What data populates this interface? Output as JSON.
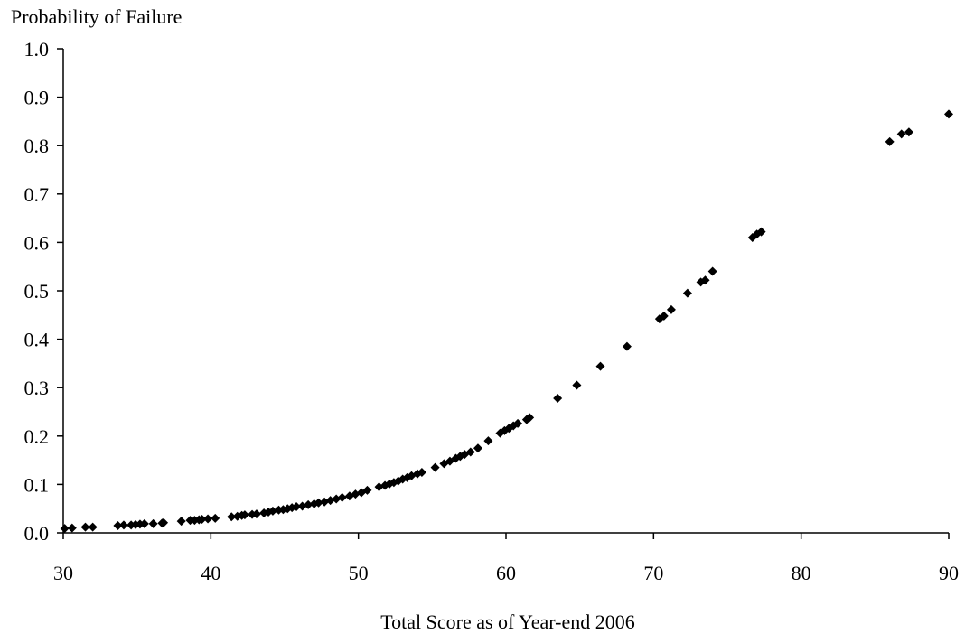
{
  "chart_data": {
    "type": "scatter",
    "title": "",
    "ylabel": "Probability of Failure",
    "xlabel": "Total Score as of Year-end 2006",
    "xlim": [
      30,
      90
    ],
    "ylim": [
      0,
      1
    ],
    "x_ticks": [
      "30",
      "40",
      "50",
      "60",
      "70",
      "80",
      "90"
    ],
    "y_ticks": [
      "0.0",
      "0.1",
      "0.2",
      "0.3",
      "0.4",
      "0.5",
      "0.6",
      "0.7",
      "0.8",
      "0.9",
      "1.0"
    ],
    "grid": false,
    "legend": "none",
    "marker": "diamond",
    "marker_color": "#000000",
    "points": [
      [
        30.1,
        0.009
      ],
      [
        30.6,
        0.01
      ],
      [
        31.5,
        0.012
      ],
      [
        32.0,
        0.012
      ],
      [
        33.7,
        0.015
      ],
      [
        34.1,
        0.016
      ],
      [
        34.6,
        0.016
      ],
      [
        34.9,
        0.017
      ],
      [
        35.2,
        0.018
      ],
      [
        35.5,
        0.019
      ],
      [
        36.1,
        0.019
      ],
      [
        36.7,
        0.02
      ],
      [
        36.8,
        0.021
      ],
      [
        38.0,
        0.024
      ],
      [
        38.6,
        0.026
      ],
      [
        38.9,
        0.026
      ],
      [
        39.2,
        0.027
      ],
      [
        39.4,
        0.028
      ],
      [
        39.8,
        0.029
      ],
      [
        40.3,
        0.03
      ],
      [
        41.4,
        0.033
      ],
      [
        41.8,
        0.034
      ],
      [
        42.1,
        0.036
      ],
      [
        42.3,
        0.037
      ],
      [
        42.8,
        0.038
      ],
      [
        43.1,
        0.039
      ],
      [
        43.6,
        0.041
      ],
      [
        43.9,
        0.043
      ],
      [
        44.2,
        0.045
      ],
      [
        44.6,
        0.047
      ],
      [
        44.9,
        0.048
      ],
      [
        45.2,
        0.05
      ],
      [
        45.5,
        0.052
      ],
      [
        45.8,
        0.054
      ],
      [
        46.2,
        0.055
      ],
      [
        46.6,
        0.058
      ],
      [
        47.0,
        0.06
      ],
      [
        47.3,
        0.062
      ],
      [
        47.7,
        0.064
      ],
      [
        48.1,
        0.067
      ],
      [
        48.5,
        0.07
      ],
      [
        48.9,
        0.073
      ],
      [
        49.4,
        0.076
      ],
      [
        49.8,
        0.08
      ],
      [
        50.2,
        0.083
      ],
      [
        50.6,
        0.088
      ],
      [
        51.4,
        0.095
      ],
      [
        51.8,
        0.098
      ],
      [
        52.1,
        0.101
      ],
      [
        52.4,
        0.104
      ],
      [
        52.7,
        0.107
      ],
      [
        53.0,
        0.111
      ],
      [
        53.3,
        0.114
      ],
      [
        53.6,
        0.118
      ],
      [
        54.0,
        0.122
      ],
      [
        54.3,
        0.125
      ],
      [
        55.2,
        0.135
      ],
      [
        55.8,
        0.143
      ],
      [
        56.2,
        0.148
      ],
      [
        56.6,
        0.154
      ],
      [
        56.9,
        0.158
      ],
      [
        57.2,
        0.162
      ],
      [
        57.6,
        0.167
      ],
      [
        58.1,
        0.175
      ],
      [
        58.8,
        0.19
      ],
      [
        59.6,
        0.206
      ],
      [
        59.9,
        0.211
      ],
      [
        60.2,
        0.216
      ],
      [
        60.5,
        0.221
      ],
      [
        60.8,
        0.226
      ],
      [
        61.4,
        0.234
      ],
      [
        61.6,
        0.238
      ],
      [
        63.5,
        0.278
      ],
      [
        64.8,
        0.305
      ],
      [
        66.4,
        0.344
      ],
      [
        68.2,
        0.385
      ],
      [
        70.4,
        0.442
      ],
      [
        70.7,
        0.448
      ],
      [
        71.2,
        0.461
      ],
      [
        72.3,
        0.495
      ],
      [
        73.2,
        0.518
      ],
      [
        73.5,
        0.522
      ],
      [
        74.0,
        0.54
      ],
      [
        76.7,
        0.61
      ],
      [
        77.0,
        0.617
      ],
      [
        77.3,
        0.622
      ],
      [
        86.0,
        0.808
      ],
      [
        86.8,
        0.824
      ],
      [
        87.3,
        0.828
      ],
      [
        90.0,
        0.865
      ]
    ]
  }
}
